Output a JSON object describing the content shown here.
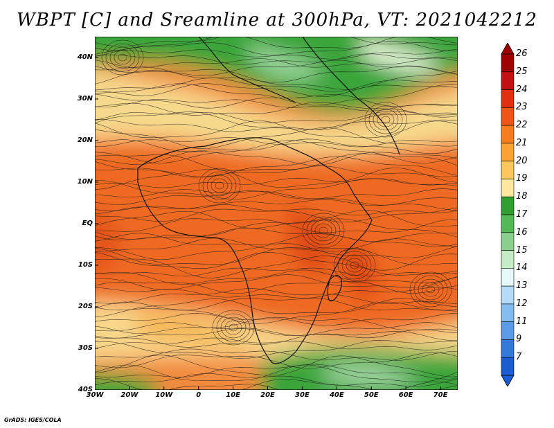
{
  "title": "WBPT [C] and Sreamline at 300hPa, VT: 2021042212",
  "credit": "GrADS: IGES/COLA",
  "axes": {
    "lat_labels": [
      "40N",
      "30N",
      "20N",
      "10N",
      "EQ",
      "10S",
      "20S",
      "30S",
      "40S"
    ],
    "lon_labels": [
      "30W",
      "20W",
      "10W",
      "0",
      "10E",
      "20E",
      "30E",
      "40E",
      "50E",
      "60E",
      "70E"
    ],
    "lat_range": [
      -40,
      45
    ],
    "lon_range": [
      -30,
      75
    ]
  },
  "colorbar": {
    "labels": [
      "26",
      "25",
      "24",
      "23",
      "22",
      "21",
      "20",
      "19",
      "18",
      "17",
      "16",
      "15",
      "14",
      "13",
      "12",
      "11",
      "9",
      "7"
    ],
    "colors": [
      "#a00000",
      "#c41010",
      "#e03010",
      "#f05518",
      "#f87c1c",
      "#f9a430",
      "#fcc85c",
      "#fde89e",
      "#2fa02f",
      "#54b854",
      "#8ad08a",
      "#c6ecc6",
      "#e6f8f8",
      "#b4dcf6",
      "#82bcf0",
      "#5a9ae6",
      "#3478dc",
      "#1c5cd2"
    ]
  },
  "field": {
    "variable": "WBPT",
    "units": "C",
    "level": "300hPa",
    "valid_time": "2021042212"
  }
}
